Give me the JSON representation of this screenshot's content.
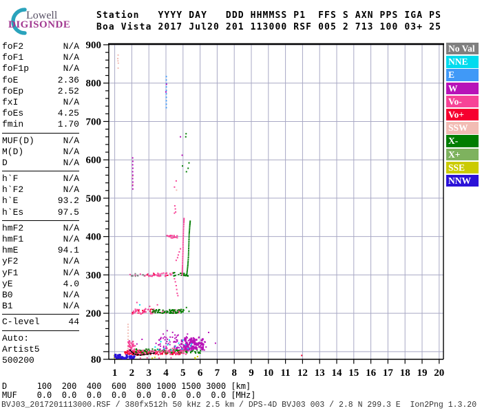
{
  "logo": {
    "top": "Lowell",
    "bottom": "DIGISONDE"
  },
  "header": {
    "line1": "Station   YYYY DAY   DDD HHMMSS P1  FFS S AXN PPS IGA PS",
    "line2": "Boa Vista 2017 Jul20 201 113000 RSF 005 2 713 100 03+ 25"
  },
  "params": {
    "sections": [
      {
        "rows": [
          [
            "foF2",
            "N/A"
          ],
          [
            "foF1",
            "N/A"
          ],
          [
            "foF1p",
            "N/A"
          ],
          [
            "foE",
            "2.36"
          ],
          [
            "foEp",
            "2.52"
          ],
          [
            "fxI",
            "N/A"
          ],
          [
            "foEs",
            "4.25"
          ],
          [
            "fmin",
            "1.70"
          ]
        ]
      },
      {
        "rows": [
          [
            "MUF(D)",
            "N/A"
          ],
          [
            "M(D)",
            "N/A"
          ],
          [
            "D",
            "N/A"
          ]
        ]
      },
      {
        "rows": [
          [
            "h`F",
            "N/A"
          ],
          [
            "h`F2",
            "N/A"
          ],
          [
            "h`E",
            "93.2"
          ],
          [
            "h`Es",
            "97.5"
          ]
        ]
      },
      {
        "rows": [
          [
            "hmF2",
            "N/A"
          ],
          [
            "hmF1",
            "N/A"
          ],
          [
            "hmE",
            "94.1"
          ],
          [
            "yF2",
            "N/A"
          ],
          [
            "yF1",
            "N/A"
          ],
          [
            "yE",
            "4.0"
          ],
          [
            "B0",
            "N/A"
          ],
          [
            "B1",
            "N/A"
          ]
        ]
      },
      {
        "rows": [
          [
            "C-level",
            "44"
          ]
        ]
      },
      {
        "rows": [
          [
            "Auto:",
            ""
          ],
          [
            "Artist5",
            ""
          ],
          [
            "500200",
            ""
          ]
        ]
      }
    ]
  },
  "legend": {
    "entries": [
      {
        "label": "No Val",
        "color": "#7F7F7F"
      },
      {
        "label": "NNE",
        "color": "#00DBEE"
      },
      {
        "label": "E",
        "color": "#4099F7"
      },
      {
        "label": "W",
        "color": "#B813B8"
      },
      {
        "label": "Vo-",
        "color": "#F74397"
      },
      {
        "label": "Vo+",
        "color": "#F6002F"
      },
      {
        "label": "SSW",
        "color": "#F2BCB4"
      },
      {
        "label": "X-",
        "color": "#007D00"
      },
      {
        "label": "X+",
        "color": "#7EB25E"
      },
      {
        "label": "SSE",
        "color": "#CBCB00"
      },
      {
        "label": "NNW",
        "color": "#2B12D8"
      }
    ]
  },
  "footer": {
    "d_label": "D",
    "d_values": [
      "100",
      "200",
      "400",
      "600",
      "800",
      "1000",
      "1500",
      "3000"
    ],
    "d_unit": "[km]",
    "muf_label": "MUF",
    "muf_values": [
      "0.0",
      "0.0",
      "0.0",
      "0.0",
      "0.0",
      "0.0",
      "0.0",
      "0.0"
    ],
    "muf_unit": "[MHz]",
    "file_info": "BVJ03_2017201113000.RSF / 380fx512h 50 kHz 2.5 km / DPS-4D BVJ03 003 / 2.8 N 299.3 E  Ion2Png 1.3.20"
  },
  "chart_data": {
    "type": "scatter",
    "title": "Digisonde ionogram, Boa Vista, 2017 Jul20 (day 201) 11:30:00",
    "xlabel": "[MHz]",
    "ylabel": "[km]",
    "xlim": [
      1,
      20
    ],
    "ylim": [
      80,
      900
    ],
    "grid": true,
    "x_ticks": [
      1,
      2,
      3,
      4,
      5,
      6,
      7,
      8,
      9,
      10,
      11,
      12,
      13,
      14,
      15,
      16,
      17,
      18,
      19,
      20
    ],
    "y_tick_labels": [
      900,
      800,
      700,
      600,
      500,
      400,
      300,
      200,
      80
    ],
    "colors": {
      "noval": "#7F7F7F",
      "nne": "#00DBEE",
      "e": "#4099F7",
      "w": "#B813B8",
      "vo-": "#F74397",
      "vo+": "#F6002F",
      "ssw": "#F2BCB4",
      "x-": "#007D00",
      "x+": "#7EB25E",
      "sse": "#CBCB00",
      "nnw": "#2B12D8",
      "black": "#000000"
    },
    "traces": [
      {
        "group": "ssw",
        "kind": "pts",
        "points": [
          [
            1.2,
            873
          ],
          [
            1.19,
            858
          ],
          [
            1.21,
            852
          ],
          [
            1.2,
            839
          ],
          [
            1.18,
            864
          ]
        ]
      },
      {
        "group": "ssw",
        "kind": "path",
        "points": [
          [
            1.78,
            100
          ],
          [
            1.78,
            108
          ],
          [
            1.78,
            116
          ],
          [
            1.79,
            124
          ],
          [
            1.78,
            132
          ],
          [
            1.79,
            140
          ],
          [
            1.78,
            148
          ],
          [
            1.79,
            156
          ],
          [
            1.78,
            164
          ],
          [
            1.78,
            171
          ]
        ]
      },
      {
        "group": "ssw",
        "kind": "pts",
        "points": [
          [
            2.05,
            557
          ],
          [
            2.06,
            536
          ],
          [
            4.62,
            521
          ]
        ]
      },
      {
        "group": "w",
        "kind": "path",
        "points": [
          [
            2.06,
            524
          ],
          [
            2.05,
            533
          ],
          [
            2.06,
            542
          ],
          [
            2.05,
            551
          ],
          [
            2.06,
            560
          ],
          [
            2.05,
            569
          ],
          [
            2.06,
            578
          ],
          [
            2.05,
            587
          ],
          [
            2.06,
            596
          ],
          [
            2.05,
            605
          ]
        ]
      },
      {
        "group": "e",
        "kind": "path",
        "points": [
          [
            4.02,
            736
          ],
          [
            4.02,
            745
          ],
          [
            4.02,
            754
          ],
          [
            4.02,
            763
          ],
          [
            4.02,
            772
          ],
          [
            4.02,
            781
          ],
          [
            4.02,
            790
          ],
          [
            4.02,
            799
          ],
          [
            4.02,
            808
          ],
          [
            4.02,
            817
          ]
        ]
      },
      {
        "group": "w",
        "kind": "pts",
        "points": [
          [
            4.0,
            777
          ],
          [
            4.03,
            797
          ],
          [
            4.85,
            660
          ],
          [
            4.95,
            612
          ],
          [
            6.3,
            125
          ],
          [
            6.35,
            112
          ],
          [
            6.9,
            122
          ],
          [
            6.5,
            150
          ],
          [
            2.6,
            132
          ],
          [
            2.3,
            120
          ],
          [
            1.85,
            128
          ],
          [
            1.3,
            85
          ],
          [
            1.6,
            84
          ],
          [
            2.0,
            86
          ]
        ]
      },
      {
        "group": "x-",
        "kind": "pts",
        "points": [
          [
            5.18,
            668
          ],
          [
            5.16,
            660
          ],
          [
            4.97,
            584
          ],
          [
            5.2,
            569
          ],
          [
            5.35,
            592
          ],
          [
            5.3,
            578
          ],
          [
            5.2,
            215
          ],
          [
            5.35,
            205
          ]
        ]
      },
      {
        "group": "vo-",
        "kind": "pts",
        "points": [
          [
            4.6,
            545
          ],
          [
            4.5,
            529
          ],
          [
            4.52,
            480
          ],
          [
            4.55,
            472
          ],
          [
            4.57,
            464
          ],
          [
            4.5,
            461
          ],
          [
            4.72,
            352
          ],
          [
            4.78,
            360
          ],
          [
            4.85,
            368
          ],
          [
            4.68,
            345
          ],
          [
            4.6,
            338
          ],
          [
            3.05,
            218
          ],
          [
            3.5,
            222
          ],
          [
            2.3,
            228
          ],
          [
            1.9,
            301
          ],
          [
            2.2,
            299
          ],
          [
            2.5,
            302
          ],
          [
            2.5,
            83
          ],
          [
            2.9,
            84
          ],
          [
            3.6,
            83
          ],
          [
            4.3,
            84
          ]
        ]
      },
      {
        "group": "noval",
        "kind": "box",
        "box": [
          1.85,
          2.75,
          296,
          304
        ],
        "n": 10
      },
      {
        "group": "vo-",
        "kind": "box",
        "box": [
          2.75,
          4.4,
          296,
          305
        ],
        "n": 40
      },
      {
        "group": "x-",
        "kind": "box",
        "box": [
          4.35,
          5.3,
          297,
          306
        ],
        "n": 20
      },
      {
        "group": "vo+",
        "kind": "pts",
        "points": [
          [
            2.9,
            300
          ],
          [
            3.3,
            302
          ],
          [
            4.1,
            299
          ],
          [
            11.95,
            90
          ]
        ]
      },
      {
        "group": "vo-",
        "kind": "path",
        "points": [
          [
            4.5,
            290
          ],
          [
            4.55,
            282
          ],
          [
            4.6,
            272
          ],
          [
            4.63,
            262
          ],
          [
            4.66,
            252
          ],
          [
            4.7,
            246
          ]
        ]
      },
      {
        "group": "vo-",
        "kind": "path",
        "dense": true,
        "points": [
          [
            4.95,
            300
          ],
          [
            4.96,
            312
          ],
          [
            4.97,
            324
          ],
          [
            4.98,
            338
          ],
          [
            4.99,
            352
          ],
          [
            5.0,
            366
          ],
          [
            5.0,
            380
          ],
          [
            5.01,
            394
          ],
          [
            5.02,
            408
          ],
          [
            5.03,
            422
          ],
          [
            5.05,
            436
          ],
          [
            5.06,
            447
          ]
        ]
      },
      {
        "group": "x-",
        "kind": "path",
        "dense": true,
        "points": [
          [
            5.22,
            300
          ],
          [
            5.25,
            312
          ],
          [
            5.28,
            324
          ],
          [
            5.3,
            336
          ],
          [
            5.32,
            350
          ],
          [
            5.33,
            364
          ],
          [
            5.34,
            378
          ],
          [
            5.35,
            392
          ],
          [
            5.36,
            406
          ],
          [
            5.38,
            418
          ],
          [
            5.4,
            430
          ],
          [
            5.42,
            440
          ]
        ]
      },
      {
        "group": "vo-",
        "kind": "box",
        "box": [
          4.05,
          4.68,
          396,
          404
        ],
        "n": 22
      },
      {
        "group": "vo+",
        "kind": "box",
        "box": [
          2.0,
          3.25,
          199,
          211
        ],
        "n": 20
      },
      {
        "group": "vo-",
        "kind": "box",
        "box": [
          2.0,
          3.3,
          198,
          212
        ],
        "n": 30
      },
      {
        "group": "vo-",
        "kind": "box",
        "box": [
          3.3,
          5.0,
          199,
          210
        ],
        "n": 25
      },
      {
        "group": "x-",
        "kind": "box",
        "box": [
          3.2,
          5.05,
          200,
          210
        ],
        "n": 70
      },
      {
        "group": "nne",
        "kind": "pts",
        "points": [
          [
            2.47,
            222
          ]
        ]
      },
      {
        "group": "vo+",
        "kind": "box",
        "box": [
          1.55,
          4.95,
          92,
          101
        ],
        "n": 110
      },
      {
        "group": "vo+",
        "kind": "box",
        "box": [
          1.65,
          2.7,
          90,
          103
        ],
        "n": 40
      },
      {
        "group": "x-",
        "kind": "box",
        "box": [
          2.2,
          6.05,
          96,
          107
        ],
        "n": 100
      },
      {
        "group": "x+",
        "kind": "box",
        "box": [
          2.5,
          5.5,
          97,
          106
        ],
        "n": 10
      },
      {
        "group": "vo-",
        "kind": "box",
        "box": [
          1.75,
          2.25,
          95,
          128
        ],
        "n": 45
      },
      {
        "group": "vo-",
        "kind": "box",
        "box": [
          1.7,
          5.2,
          93,
          104
        ],
        "n": 60
      },
      {
        "group": "vo-",
        "kind": "box",
        "box": [
          4.0,
          5.3,
          100,
          115
        ],
        "n": 25
      },
      {
        "group": "w",
        "kind": "box",
        "box": [
          3.4,
          6.3,
          102,
          140
        ],
        "n": 80
      },
      {
        "group": "w",
        "kind": "box",
        "box": [
          4.9,
          6.2,
          105,
          135
        ],
        "n": 60,
        "size": 3
      },
      {
        "group": "w",
        "kind": "box",
        "box": [
          3.8,
          5.6,
          135,
          155
        ],
        "n": 12
      },
      {
        "group": "nne",
        "kind": "pts",
        "points": [
          [
            3.37,
            112
          ],
          [
            3.55,
            105
          ],
          [
            3.9,
            108
          ],
          [
            4.1,
            118
          ],
          [
            4.3,
            104
          ],
          [
            4.55,
            113
          ],
          [
            4.75,
            122
          ],
          [
            4.95,
            107
          ],
          [
            5.15,
            118
          ],
          [
            5.3,
            108
          ],
          [
            5.45,
            115
          ],
          [
            3.7,
            126
          ],
          [
            4.2,
            130
          ],
          [
            5.0,
            130
          ],
          [
            5.5,
            120
          ]
        ]
      },
      {
        "group": "sse",
        "kind": "pts",
        "points": [
          [
            0.97,
            90
          ],
          [
            0.98,
            84
          ],
          [
            3.35,
            85
          ],
          [
            3.2,
            83
          ],
          [
            5.7,
            84
          ],
          [
            5.85,
            87
          ],
          [
            5.72,
            82
          ]
        ]
      },
      {
        "group": "nnw",
        "kind": "box",
        "box": [
          0.95,
          2.15,
          82,
          92
        ],
        "n": 30,
        "size": 3
      },
      {
        "group": "nnw",
        "kind": "box",
        "box": [
          1.0,
          1.75,
          82,
          86
        ],
        "n": 12,
        "size": 3
      },
      {
        "group": "black",
        "kind": "line",
        "points": [
          [
            1.9,
            104
          ],
          [
            2.0,
            99
          ],
          [
            2.1,
            95
          ],
          [
            2.2,
            93
          ],
          [
            2.35,
            92
          ],
          [
            2.5,
            91
          ],
          [
            2.7,
            92
          ],
          [
            2.9,
            93
          ],
          [
            3.1,
            95
          ],
          [
            3.3,
            96
          ]
        ]
      }
    ]
  }
}
